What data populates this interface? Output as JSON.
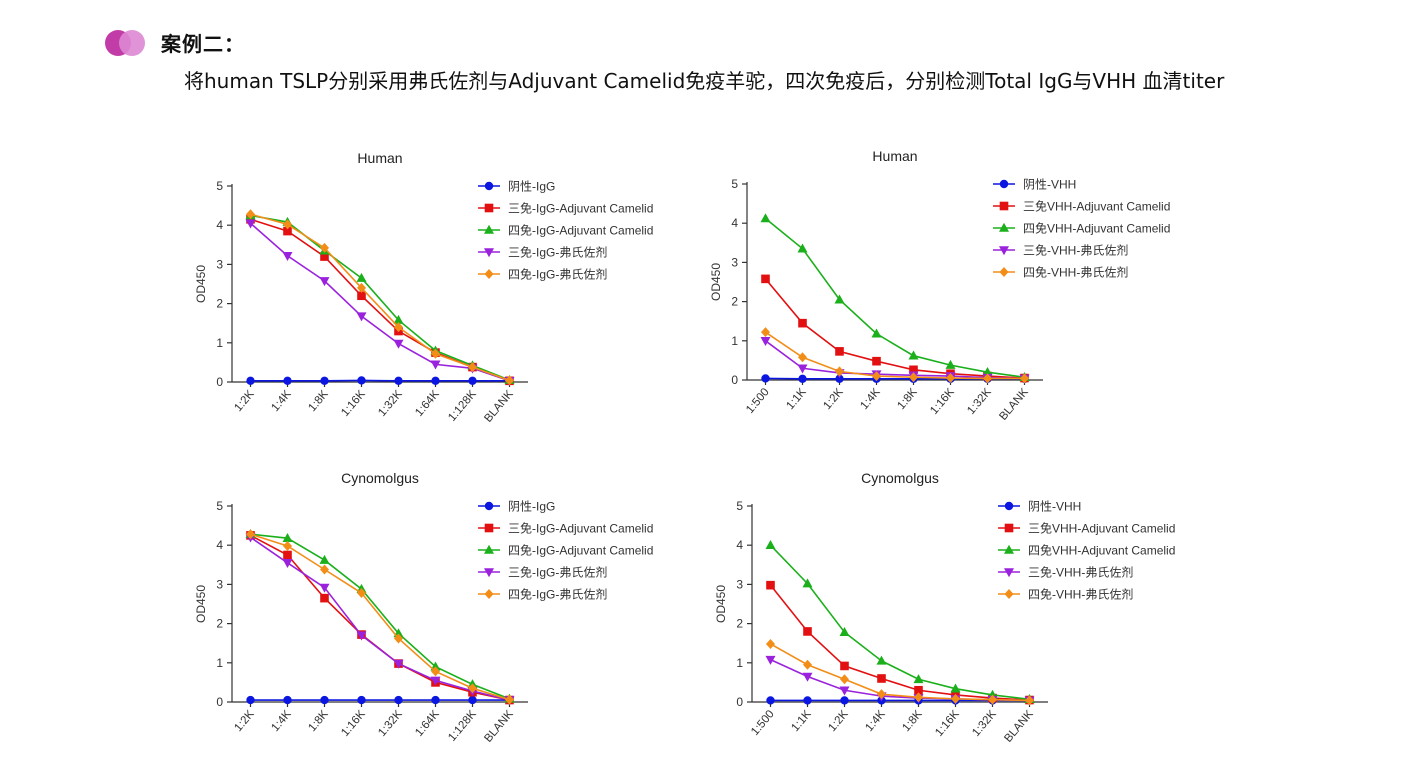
{
  "header": {
    "case_title": "案例二：",
    "description": "将human TSLP分别采用弗氏佐剂与Adjuvant Camelid免疫羊驼，四次免疫后，分别检测Total IgG与VHH 血清titer"
  },
  "colors": {
    "accent1": "#c23ca8",
    "accent2": "#dd87d3",
    "blue": "#0b17e0",
    "red": "#e21010",
    "green": "#1bb01b",
    "purple": "#9b22dd",
    "orange": "#f28e18"
  },
  "chart_data": [
    {
      "id": "c1",
      "type": "line",
      "title": "Human",
      "xlabel": "",
      "ylabel": "OD450",
      "ylim": [
        0,
        5
      ],
      "yticks": [
        "0",
        "1",
        "2",
        "3",
        "4",
        "5"
      ],
      "categories": [
        "1:2K",
        "1:4K",
        "1:8K",
        "1:16K",
        "1:32K",
        "1:64K",
        "1:128K",
        "BLANK"
      ],
      "series": [
        {
          "name": "阴性-IgG",
          "color": "#0b17e0",
          "marker": "circle",
          "values": [
            0.03,
            0.03,
            0.03,
            0.04,
            0.03,
            0.03,
            0.03,
            0.03
          ]
        },
        {
          "name": "三免-IgG-Adjuvant Camelid",
          "color": "#e21010",
          "marker": "square",
          "values": [
            4.15,
            3.85,
            3.2,
            2.2,
            1.3,
            0.75,
            0.38,
            0.03
          ]
        },
        {
          "name": "四免-IgG-Adjuvant Camelid",
          "color": "#1bb01b",
          "marker": "triangle",
          "values": [
            4.25,
            4.08,
            3.35,
            2.65,
            1.58,
            0.8,
            0.42,
            0.05
          ]
        },
        {
          "name": "三免-IgG-弗氏佐剂",
          "color": "#9b22dd",
          "marker": "tridown",
          "values": [
            4.05,
            3.22,
            2.58,
            1.68,
            0.98,
            0.45,
            0.35,
            0.03
          ]
        },
        {
          "name": "四免-IgG-弗氏佐剂",
          "color": "#f28e18",
          "marker": "diamond",
          "values": [
            4.28,
            4.02,
            3.42,
            2.4,
            1.4,
            0.72,
            0.38,
            0.04
          ]
        }
      ]
    },
    {
      "id": "c2",
      "type": "line",
      "title": "Human",
      "xlabel": "",
      "ylabel": "OD450",
      "ylim": [
        0,
        5
      ],
      "yticks": [
        "0",
        "1",
        "2",
        "3",
        "4",
        "5"
      ],
      "categories": [
        "1:500",
        "1:1K",
        "1:2K",
        "1:4K",
        "1:8K",
        "1:16K",
        "1:32K",
        "BLANK"
      ],
      "series": [
        {
          "name": "阴性-VHH",
          "color": "#0b17e0",
          "marker": "circle",
          "values": [
            0.04,
            0.03,
            0.03,
            0.03,
            0.03,
            0.03,
            0.03,
            0.03
          ]
        },
        {
          "name": "三免VHH-Adjuvant Camelid",
          "color": "#e21010",
          "marker": "square",
          "values": [
            2.58,
            1.45,
            0.73,
            0.48,
            0.26,
            0.16,
            0.1,
            0.05
          ]
        },
        {
          "name": "四免VHH-Adjuvant Camelid",
          "color": "#1bb01b",
          "marker": "triangle",
          "values": [
            4.12,
            3.35,
            2.05,
            1.18,
            0.62,
            0.38,
            0.2,
            0.07
          ]
        },
        {
          "name": "三免-VHH-弗氏佐剂",
          "color": "#9b22dd",
          "marker": "tridown",
          "values": [
            1.0,
            0.3,
            0.18,
            0.15,
            0.12,
            0.1,
            0.06,
            0.04
          ]
        },
        {
          "name": "四免-VHH-弗氏佐剂",
          "color": "#f28e18",
          "marker": "diamond",
          "values": [
            1.22,
            0.58,
            0.22,
            0.1,
            0.07,
            0.05,
            0.04,
            0.04
          ]
        }
      ]
    },
    {
      "id": "c3",
      "type": "line",
      "title": "Cynomolgus",
      "xlabel": "",
      "ylabel": "OD450",
      "ylim": [
        0,
        5
      ],
      "yticks": [
        "0",
        "1",
        "2",
        "3",
        "4",
        "5"
      ],
      "categories": [
        "1:2K",
        "1:4K",
        "1:8K",
        "1:16K",
        "1:32K",
        "1:64K",
        "1:128K",
        "BLANK"
      ],
      "series": [
        {
          "name": "阴性-IgG",
          "color": "#0b17e0",
          "marker": "circle",
          "values": [
            0.05,
            0.05,
            0.05,
            0.05,
            0.05,
            0.05,
            0.05,
            0.05
          ]
        },
        {
          "name": "三免-IgG-Adjuvant Camelid",
          "color": "#e21010",
          "marker": "square",
          "values": [
            4.25,
            3.75,
            2.65,
            1.72,
            0.98,
            0.5,
            0.25,
            0.05
          ]
        },
        {
          "name": "四免-IgG-Adjuvant Camelid",
          "color": "#1bb01b",
          "marker": "triangle",
          "values": [
            4.28,
            4.18,
            3.62,
            2.88,
            1.75,
            0.9,
            0.45,
            0.08
          ]
        },
        {
          "name": "三免-IgG-弗氏佐剂",
          "color": "#9b22dd",
          "marker": "tridown",
          "values": [
            4.2,
            3.55,
            2.92,
            1.7,
            0.98,
            0.55,
            0.28,
            0.05
          ]
        },
        {
          "name": "四免-IgG-弗氏佐剂",
          "color": "#f28e18",
          "marker": "diamond",
          "values": [
            4.28,
            3.98,
            3.38,
            2.78,
            1.62,
            0.78,
            0.35,
            0.06
          ]
        }
      ]
    },
    {
      "id": "c4",
      "type": "line",
      "title": "Cynomolgus",
      "xlabel": "",
      "ylabel": "OD450",
      "ylim": [
        0,
        5
      ],
      "yticks": [
        "0",
        "1",
        "2",
        "3",
        "4",
        "5"
      ],
      "categories": [
        "1:500",
        "1:1K",
        "1:2K",
        "1:4K",
        "1:8K",
        "1:16K",
        "1:32K",
        "BLANK"
      ],
      "series": [
        {
          "name": "阴性-VHH",
          "color": "#0b17e0",
          "marker": "circle",
          "values": [
            0.04,
            0.04,
            0.04,
            0.04,
            0.04,
            0.04,
            0.04,
            0.04
          ]
        },
        {
          "name": "三免VHH-Adjuvant Camelid",
          "color": "#e21010",
          "marker": "square",
          "values": [
            2.98,
            1.8,
            0.92,
            0.6,
            0.3,
            0.18,
            0.1,
            0.05
          ]
        },
        {
          "name": "四免VHH-Adjuvant Camelid",
          "color": "#1bb01b",
          "marker": "triangle",
          "values": [
            4.0,
            3.02,
            1.78,
            1.05,
            0.58,
            0.34,
            0.18,
            0.07
          ]
        },
        {
          "name": "三免-VHH-弗氏佐剂",
          "color": "#9b22dd",
          "marker": "tridown",
          "values": [
            1.08,
            0.65,
            0.3,
            0.15,
            0.1,
            0.08,
            0.06,
            0.04
          ]
        },
        {
          "name": "四免-VHH-弗氏佐剂",
          "color": "#f28e18",
          "marker": "diamond",
          "values": [
            1.48,
            0.95,
            0.58,
            0.2,
            0.12,
            0.08,
            0.06,
            0.04
          ]
        }
      ]
    }
  ]
}
